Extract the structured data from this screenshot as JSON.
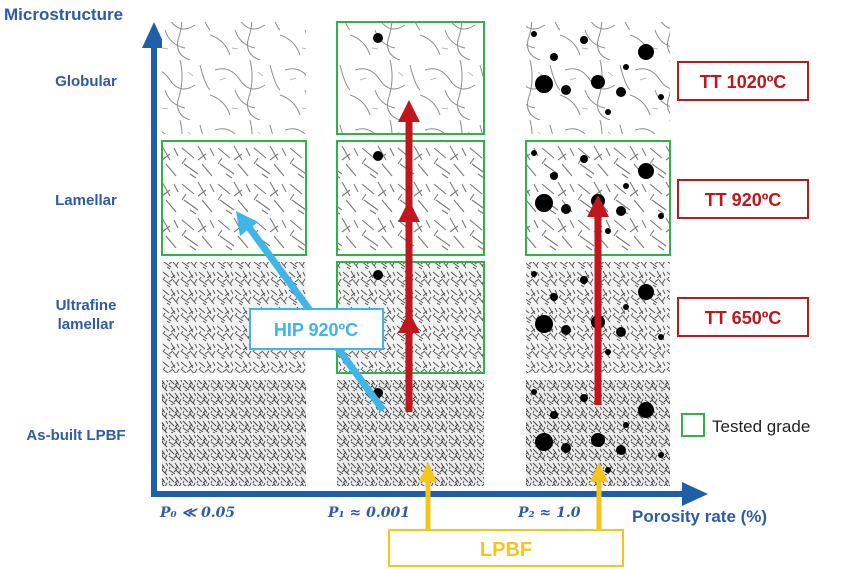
{
  "y_axis": {
    "title": "Microstructure",
    "levels": [
      "Globular",
      "Lamellar",
      "Ultrafine lamellar",
      "As-built LPBF"
    ]
  },
  "x_axis": {
    "title": "Porosity rate (%)",
    "ticks": [
      "P₀ ≪ 0.05",
      "P₁ ≈ 0.001",
      "P₂ ≈ 1.0"
    ]
  },
  "treatments": [
    "TT 1020ºC",
    "TT 920ºC",
    "TT 650ºC"
  ],
  "hip_label": "HIP 920ºC",
  "lpbf_label": "LPBF",
  "legend": {
    "label": "Tested grade"
  },
  "colors": {
    "axis": "#1f5fa8",
    "label": "#2f5aa8",
    "red": "#c0161c",
    "cyan": "#3fb5e8",
    "yellow": "#f5c518",
    "green": "#2fb24a"
  },
  "grid": {
    "columns": [
      "P0",
      "P1",
      "P2"
    ],
    "tested_cells": [
      "Lamellar/P0",
      "Globular/P1",
      "Lamellar/P1",
      "Ultrafine lamellar/P1",
      "Lamellar/P2"
    ],
    "pores": [
      "none",
      "sparse",
      "dense"
    ]
  }
}
